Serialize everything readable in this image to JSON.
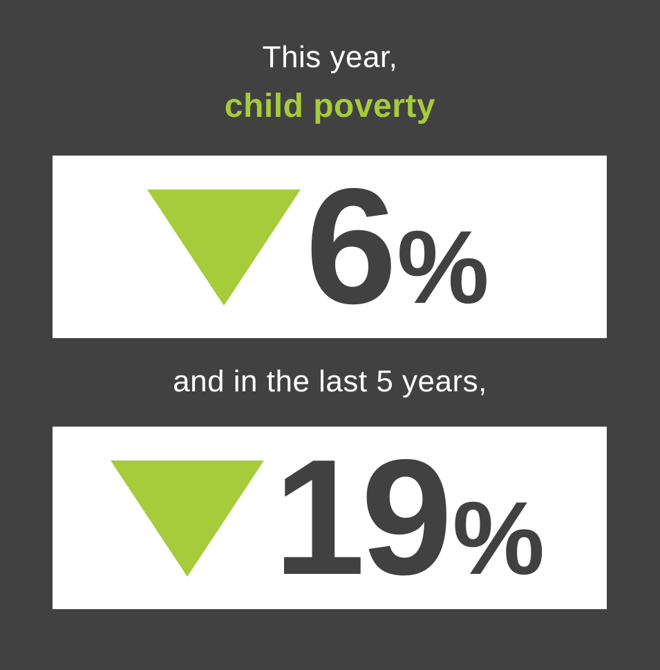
{
  "colors": {
    "background": "#414141",
    "accent": "#a6cb3b",
    "box": "#ffffff",
    "number": "#414141"
  },
  "intro": "This year,",
  "subject": "child poverty",
  "bridge": "and in the last 5 years,",
  "stats": [
    {
      "direction": "down-arrow-icon",
      "value": "6",
      "unit": "%"
    },
    {
      "direction": "down-arrow-icon",
      "value": "19",
      "unit": "%"
    }
  ]
}
